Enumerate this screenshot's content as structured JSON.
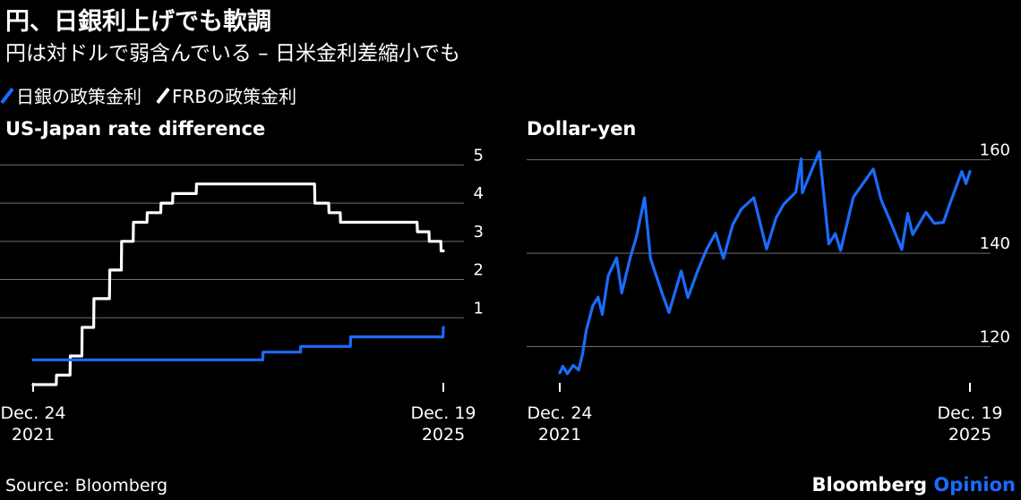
{
  "header": {
    "title": "円、日銀利上げでも軟調",
    "subtitle": "円は対ドルで弱含んでいる – 日米金利差縮小でも"
  },
  "legend": [
    {
      "label": "日銀の政策金利",
      "color": "#1a6cff"
    },
    {
      "label": "FRBの政策金利",
      "color": "#ffffff"
    }
  ],
  "footer": {
    "source": "Source: Bloomberg",
    "brand_name": "Bloomberg",
    "brand_suffix": "Opinion",
    "brand_accent": "#1a6cff"
  },
  "colors": {
    "background": "#000000",
    "grid": "#6e6e6e",
    "frb": "#ffffff",
    "boj": "#1a6cff"
  },
  "chart_data": [
    {
      "type": "line",
      "title": "US-Japan rate difference",
      "x_start": "2021-12-24",
      "x_end": "2025-12-19",
      "x_tick_labels": [
        [
          "Dec. 24",
          "2021"
        ],
        [
          "Dec. 19",
          "2025"
        ]
      ],
      "ylim": [
        -1.1,
        5.5
      ],
      "yticks": [
        1,
        2,
        3,
        4,
        5
      ],
      "grid": true,
      "series": [
        {
          "name": "FRBの政策金利",
          "color": "#ffffff",
          "points": [
            [
              "2021-12-24",
              -0.75
            ],
            [
              "2022-03-16",
              -0.75
            ],
            [
              "2022-03-17",
              -0.5
            ],
            [
              "2022-05-04",
              -0.5
            ],
            [
              "2022-05-05",
              0.0
            ],
            [
              "2022-06-15",
              0.0
            ],
            [
              "2022-06-16",
              0.75
            ],
            [
              "2022-07-27",
              0.75
            ],
            [
              "2022-07-28",
              1.5
            ],
            [
              "2022-09-21",
              1.5
            ],
            [
              "2022-09-22",
              2.25
            ],
            [
              "2022-11-02",
              2.25
            ],
            [
              "2022-11-03",
              3.0
            ],
            [
              "2022-12-14",
              3.0
            ],
            [
              "2022-12-15",
              3.5
            ],
            [
              "2023-02-01",
              3.5
            ],
            [
              "2023-02-02",
              3.75
            ],
            [
              "2023-03-22",
              3.75
            ],
            [
              "2023-03-23",
              4.0
            ],
            [
              "2023-05-03",
              4.0
            ],
            [
              "2023-05-04",
              4.25
            ],
            [
              "2023-07-26",
              4.25
            ],
            [
              "2023-07-27",
              4.5
            ],
            [
              "2024-09-18",
              4.5
            ],
            [
              "2024-09-19",
              4.0
            ],
            [
              "2024-11-07",
              4.0
            ],
            [
              "2024-11-08",
              3.75
            ],
            [
              "2024-12-18",
              3.75
            ],
            [
              "2024-12-19",
              3.5
            ],
            [
              "2025-09-17",
              3.5
            ],
            [
              "2025-09-18",
              3.25
            ],
            [
              "2025-10-29",
              3.25
            ],
            [
              "2025-10-30",
              3.0
            ],
            [
              "2025-12-10",
              3.0
            ],
            [
              "2025-12-11",
              2.75
            ],
            [
              "2025-12-19",
              2.75
            ]
          ]
        },
        {
          "name": "日銀の政策金利",
          "color": "#1a6cff",
          "points": [
            [
              "2021-12-24",
              -0.1
            ],
            [
              "2024-03-18",
              -0.1
            ],
            [
              "2024-03-19",
              0.1
            ],
            [
              "2024-07-30",
              0.1
            ],
            [
              "2024-07-31",
              0.25
            ],
            [
              "2025-01-23",
              0.25
            ],
            [
              "2025-01-24",
              0.5
            ],
            [
              "2025-12-18",
              0.5
            ],
            [
              "2025-12-19",
              0.75
            ]
          ]
        }
      ]
    },
    {
      "type": "line",
      "title": "Dollar-yen",
      "x_start": "2021-12-24",
      "x_end": "2025-12-19",
      "x_tick_labels": [
        [
          "Dec. 24",
          "2021"
        ],
        [
          "Dec. 19",
          "2025"
        ]
      ],
      "ylim": [
        109,
        163
      ],
      "yticks": [
        120,
        140,
        160
      ],
      "grid": true,
      "series": [
        {
          "name": "Dollar-yen",
          "color": "#1a6cff",
          "points": [
            [
              "2021-12-24",
              114.4
            ],
            [
              "2022-01-04",
              115.8
            ],
            [
              "2022-01-20",
              114.2
            ],
            [
              "2022-02-10",
              116.0
            ],
            [
              "2022-03-01",
              115.0
            ],
            [
              "2022-03-15",
              118.5
            ],
            [
              "2022-03-28",
              123.5
            ],
            [
              "2022-04-20",
              128.7
            ],
            [
              "2022-05-09",
              130.6
            ],
            [
              "2022-05-24",
              126.9
            ],
            [
              "2022-06-14",
              135.2
            ],
            [
              "2022-07-14",
              139.0
            ],
            [
              "2022-08-01",
              131.5
            ],
            [
              "2022-08-31",
              139.0
            ],
            [
              "2022-09-22",
              143.5
            ],
            [
              "2022-10-21",
              151.9
            ],
            [
              "2022-11-11",
              138.9
            ],
            [
              "2022-12-20",
              131.8
            ],
            [
              "2023-01-16",
              127.3
            ],
            [
              "2023-02-28",
              136.2
            ],
            [
              "2023-03-24",
              130.5
            ],
            [
              "2023-04-28",
              136.3
            ],
            [
              "2023-05-30",
              140.9
            ],
            [
              "2023-06-30",
              144.3
            ],
            [
              "2023-07-28",
              138.9
            ],
            [
              "2023-08-30",
              146.1
            ],
            [
              "2023-09-29",
              149.4
            ],
            [
              "2023-11-13",
              151.9
            ],
            [
              "2023-12-28",
              140.9
            ],
            [
              "2024-01-31",
              147.6
            ],
            [
              "2024-02-27",
              150.5
            ],
            [
              "2024-04-10",
              153.1
            ],
            [
              "2024-04-29",
              160.2
            ],
            [
              "2024-05-03",
              152.9
            ],
            [
              "2024-06-26",
              160.8
            ],
            [
              "2024-07-03",
              161.7
            ],
            [
              "2024-08-05",
              142.0
            ],
            [
              "2024-08-28",
              144.2
            ],
            [
              "2024-09-16",
              140.6
            ],
            [
              "2024-10-31",
              152.0
            ],
            [
              "2024-12-31",
              157.2
            ],
            [
              "2025-01-10",
              158.0
            ],
            [
              "2025-02-07",
              151.4
            ],
            [
              "2025-03-11",
              146.9
            ],
            [
              "2025-04-21",
              140.8
            ],
            [
              "2025-05-12",
              148.5
            ],
            [
              "2025-05-30",
              144.0
            ],
            [
              "2025-07-16",
              148.8
            ],
            [
              "2025-08-14",
              146.4
            ],
            [
              "2025-09-16",
              146.6
            ],
            [
              "2025-10-06",
              150.1
            ],
            [
              "2025-11-20",
              157.5
            ],
            [
              "2025-12-05",
              154.9
            ],
            [
              "2025-12-19",
              157.5
            ]
          ]
        }
      ]
    }
  ]
}
